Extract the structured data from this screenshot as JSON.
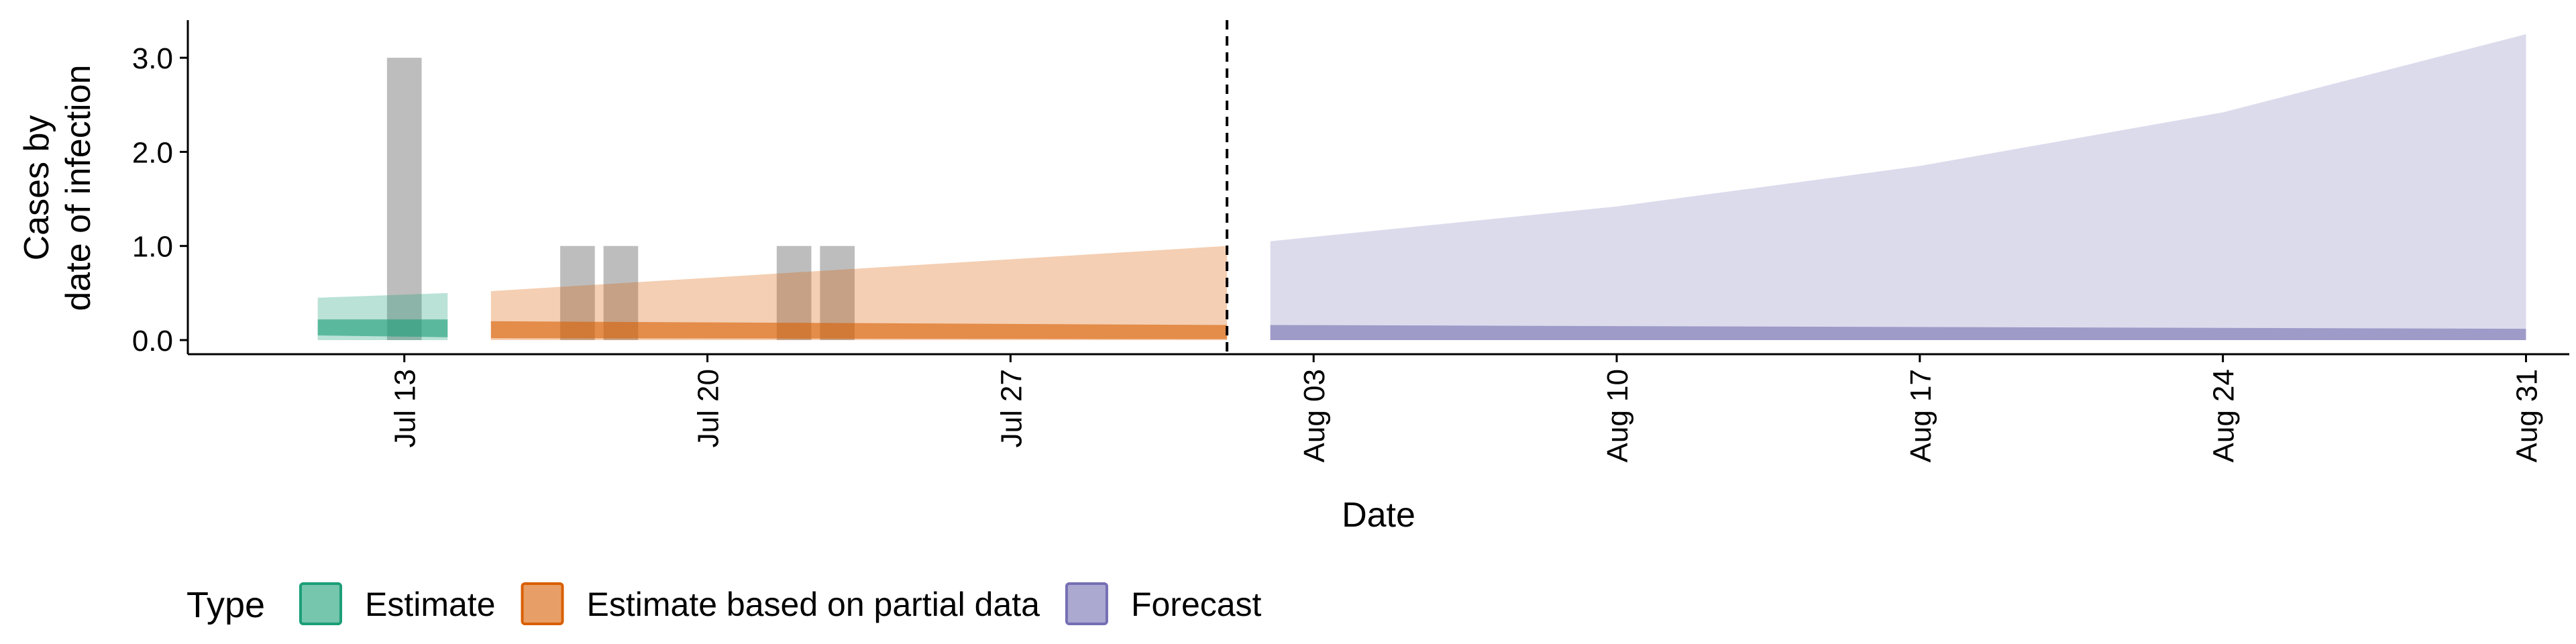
{
  "chart_data": {
    "type": "area",
    "xlabel": "Date",
    "ylabel_line1": "Cases by",
    "ylabel_line2": "date of infection",
    "x_range": [
      "2020-07-08",
      "2020-09-01"
    ],
    "ylim": [
      -0.15,
      3.4
    ],
    "y_ticks": [
      0.0,
      1.0,
      2.0,
      3.0
    ],
    "y_tick_labels": [
      "0.0",
      "1.0",
      "2.0",
      "3.0"
    ],
    "x_ticks": [
      "2020-07-13",
      "2020-07-20",
      "2020-07-27",
      "2020-08-03",
      "2020-08-10",
      "2020-08-17",
      "2020-08-24",
      "2020-08-31"
    ],
    "x_tick_labels": [
      "Jul 13",
      "Jul 20",
      "Jul 27",
      "Aug 03",
      "Aug 10",
      "Aug 17",
      "Aug 24",
      "Aug 31"
    ],
    "forecast_date": "2020-08-01",
    "grid": false,
    "legend_position": "bottom",
    "legend_title": "Type",
    "reported_cases": [
      {
        "date": "2020-07-13",
        "value": 3
      },
      {
        "date": "2020-07-17",
        "value": 1
      },
      {
        "date": "2020-07-18",
        "value": 1
      },
      {
        "date": "2020-07-22",
        "value": 1
      },
      {
        "date": "2020-07-23",
        "value": 1
      }
    ],
    "series": [
      {
        "name": "Estimate",
        "color": "#1b9e77",
        "bands": [
          {
            "x": [
              "2020-07-11",
              "2020-07-14"
            ],
            "lower": [
              0.0,
              0.0
            ],
            "upper": [
              0.45,
              0.5
            ]
          },
          {
            "x": [
              "2020-07-11",
              "2020-07-14"
            ],
            "lower": [
              0.05,
              0.03
            ],
            "upper": [
              0.22,
              0.22
            ]
          }
        ]
      },
      {
        "name": "Estimate based on partial data",
        "color": "#d95f02",
        "bands": [
          {
            "x": [
              "2020-07-15",
              "2020-08-01"
            ],
            "lower": [
              0.0,
              0.0
            ],
            "upper": [
              0.52,
              1.0
            ]
          },
          {
            "x": [
              "2020-07-15",
              "2020-08-01"
            ],
            "lower": [
              0.02,
              0.01
            ],
            "upper": [
              0.2,
              0.16
            ]
          }
        ]
      },
      {
        "name": "Forecast",
        "color": "#7570b3",
        "bands": [
          {
            "x": [
              "2020-08-02",
              "2020-08-10",
              "2020-08-17",
              "2020-08-24",
              "2020-08-31"
            ],
            "lower": [
              0,
              0,
              0,
              0,
              0
            ],
            "upper": [
              1.05,
              1.42,
              1.85,
              2.42,
              3.25
            ]
          },
          {
            "x": [
              "2020-08-02",
              "2020-08-31"
            ],
            "lower": [
              0.0,
              0.0
            ],
            "upper": [
              0.16,
              0.12
            ]
          }
        ]
      }
    ]
  }
}
